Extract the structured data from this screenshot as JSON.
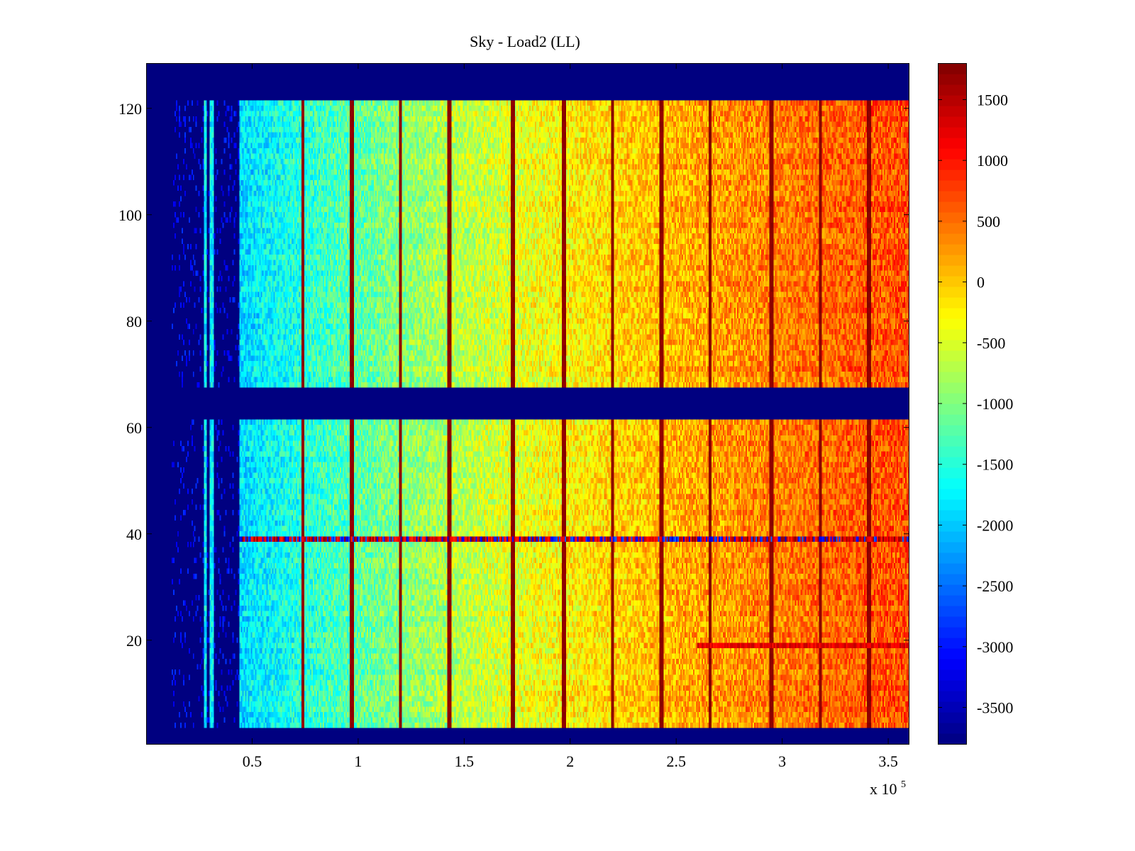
{
  "chart_data": {
    "type": "heatmap",
    "title": "Sky - Load2 (LL)",
    "xlabel": "",
    "ylabel": "",
    "x_exponent_label": "x 10",
    "x_exponent_power": "5",
    "xlim": [
      0.0,
      3.6
    ],
    "ylim": [
      0.5,
      128.5
    ],
    "x_ticks": [
      {
        "value": 0.5,
        "label": "0.5"
      },
      {
        "value": 1.0,
        "label": "1"
      },
      {
        "value": 1.5,
        "label": "1.5"
      },
      {
        "value": 2.0,
        "label": "2"
      },
      {
        "value": 2.5,
        "label": "2.5"
      },
      {
        "value": 3.0,
        "label": "3"
      },
      {
        "value": 3.5,
        "label": "3.5"
      }
    ],
    "y_ticks": [
      {
        "value": 20,
        "label": "20"
      },
      {
        "value": 40,
        "label": "40"
      },
      {
        "value": 60,
        "label": "60"
      },
      {
        "value": 80,
        "label": "80"
      },
      {
        "value": 100,
        "label": "100"
      },
      {
        "value": 120,
        "label": "120"
      }
    ],
    "colorbar": {
      "colormap": "jet",
      "clim": [
        -3800,
        1800
      ],
      "ticks": [
        {
          "value": 1500,
          "label": "1500"
        },
        {
          "value": 1000,
          "label": "1000"
        },
        {
          "value": 500,
          "label": "500"
        },
        {
          "value": 0,
          "label": "0"
        },
        {
          "value": -500,
          "label": "-500"
        },
        {
          "value": -1000,
          "label": "-1000"
        },
        {
          "value": -1500,
          "label": "-1500"
        },
        {
          "value": -2000,
          "label": "-2000"
        },
        {
          "value": -2500,
          "label": "-2500"
        },
        {
          "value": -3000,
          "label": "-3000"
        },
        {
          "value": -3500,
          "label": "-3500"
        }
      ]
    },
    "background_value": -3800,
    "channel_blocks": [
      [
        4,
        61
      ],
      [
        68,
        121
      ]
    ],
    "data_start_x": 0.44,
    "early_stripes_x": [
      0.28,
      0.31
    ],
    "trend": {
      "start_value": -1900,
      "end_value": 700,
      "rise_scale": 0.85
    },
    "spike_columns_x": [
      0.74,
      0.97,
      1.2,
      1.43,
      1.73,
      1.97,
      2.2,
      2.43,
      2.66,
      2.95,
      3.18,
      3.41
    ],
    "anomalous_rows": [
      39,
      19
    ],
    "colors": {
      "background": "#ffffff",
      "axis": "#000000",
      "empty": "#00008f"
    }
  }
}
